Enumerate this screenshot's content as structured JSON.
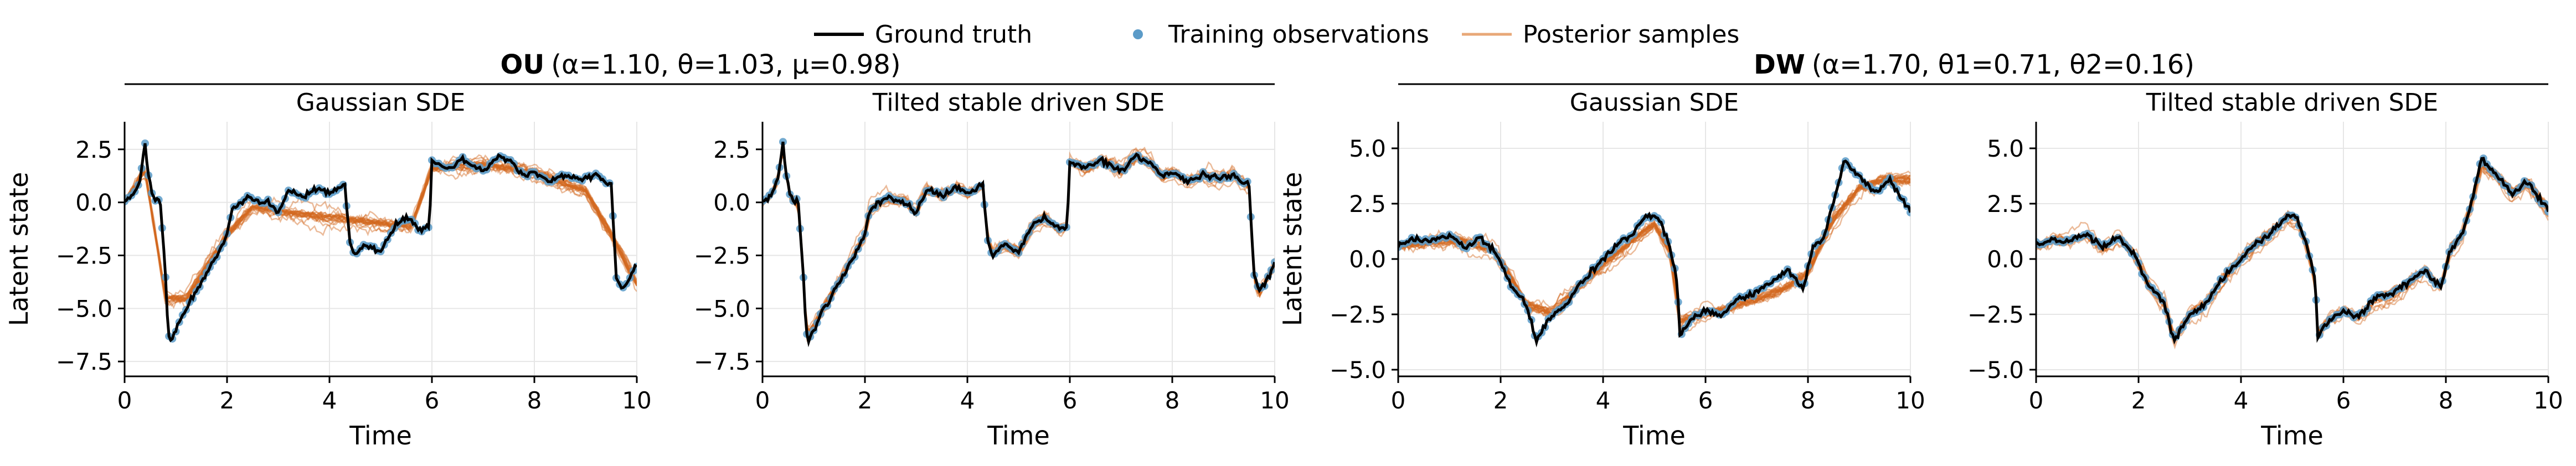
{
  "legend": {
    "placement": "top-center",
    "items": [
      {
        "label": "Ground truth",
        "kind": "line",
        "color": "#000000"
      },
      {
        "label": "Training observations",
        "kind": "marker",
        "color": "#5b9bc8"
      },
      {
        "label": "Posterior samples",
        "kind": "line",
        "color": "#e8a878"
      }
    ]
  },
  "groups": [
    {
      "bold": "OU",
      "params": "(α=1.10, θ=1.03, μ=0.98)"
    },
    {
      "bold": "DW",
      "params": "(α=1.70, θ1=0.71, θ2=0.16)"
    }
  ],
  "colors": {
    "truth": "#000000",
    "obs": "#5b9bc8",
    "samples": "#d2691e",
    "grid": "#e6e6e6"
  },
  "chart_data": [
    {
      "type": "line",
      "title": "Gaussian SDE",
      "group": "OU",
      "xlabel": "Time",
      "ylabel": "Latent state",
      "xlim": [
        0,
        10
      ],
      "ylim": [
        -8.2,
        3.8
      ],
      "xticks": [
        0,
        2,
        4,
        6,
        8,
        10
      ],
      "yticks": [
        -7.5,
        -5.0,
        -2.5,
        0.0,
        2.5
      ],
      "ytick_labels": [
        "−7.5",
        "−5.0",
        "−2.5",
        "0.0",
        "2.5"
      ],
      "grid": true,
      "truth": {
        "x": [
          0,
          0.15,
          0.3,
          0.4,
          0.45,
          0.55,
          0.7,
          0.8,
          0.85,
          0.9,
          1.0,
          1.2,
          1.5,
          1.8,
          2.0,
          2.1,
          2.4,
          2.8,
          3.0,
          3.2,
          3.5,
          3.8,
          4.0,
          4.3,
          4.4,
          4.5,
          4.7,
          5.0,
          5.3,
          5.5,
          5.8,
          5.95,
          6.0,
          6.3,
          6.6,
          7.0,
          7.3,
          7.6,
          7.8,
          8.0,
          8.3,
          8.6,
          8.9,
          9.2,
          9.5,
          9.6,
          9.7,
          9.8,
          10.0
        ],
        "y": [
          0,
          0.3,
          1.0,
          2.8,
          1.5,
          0.2,
          0.0,
          -3.5,
          -6.2,
          -6.5,
          -6.0,
          -5.0,
          -3.8,
          -2.5,
          -1.5,
          -0.3,
          0.2,
          0.0,
          -0.5,
          0.6,
          0.3,
          0.7,
          0.4,
          0.8,
          -1.8,
          -2.5,
          -2.0,
          -2.3,
          -1.0,
          -0.7,
          -1.3,
          -1.1,
          1.9,
          1.6,
          2.0,
          1.5,
          2.2,
          1.8,
          1.2,
          1.4,
          1.0,
          1.3,
          1.1,
          1.3,
          0.8,
          -3.5,
          -4.2,
          -3.8,
          -3.0
        ]
      },
      "samples_center": {
        "x": [
          0,
          0.4,
          0.8,
          1.2,
          2.0,
          2.5,
          3.0,
          4.0,
          5.0,
          5.6,
          6.0,
          7.0,
          8.0,
          9.0,
          9.5,
          10.0
        ],
        "y": [
          0,
          1.5,
          -4.5,
          -4.5,
          -1.5,
          -0.2,
          -0.4,
          -0.7,
          -1.0,
          -1.1,
          1.6,
          1.8,
          1.4,
          0.6,
          -1.5,
          -3.8
        ]
      }
    },
    {
      "type": "line",
      "title": "Tilted stable driven SDE",
      "group": "OU",
      "xlabel": "Time",
      "ylabel": "",
      "xlim": [
        0,
        10
      ],
      "ylim": [
        -8.2,
        3.8
      ],
      "xticks": [
        0,
        2,
        4,
        6,
        8,
        10
      ],
      "yticks": [
        -7.5,
        -5.0,
        -2.5,
        0.0,
        2.5
      ],
      "ytick_labels": [
        "−7.5",
        "−5.0",
        "−2.5",
        "0.0",
        "2.5"
      ],
      "grid": true,
      "truth": {
        "x": [
          0,
          0.15,
          0.3,
          0.4,
          0.45,
          0.55,
          0.7,
          0.8,
          0.85,
          0.9,
          1.0,
          1.2,
          1.5,
          1.8,
          2.0,
          2.1,
          2.4,
          2.8,
          3.0,
          3.2,
          3.5,
          3.8,
          4.0,
          4.3,
          4.4,
          4.5,
          4.7,
          5.0,
          5.3,
          5.5,
          5.8,
          5.95,
          6.0,
          6.3,
          6.6,
          7.0,
          7.3,
          7.6,
          7.8,
          8.0,
          8.3,
          8.6,
          8.9,
          9.2,
          9.5,
          9.6,
          9.7,
          9.8,
          10.0
        ],
        "y": [
          0,
          0.3,
          1.0,
          2.8,
          1.5,
          0.2,
          0.0,
          -3.5,
          -6.2,
          -6.5,
          -6.0,
          -5.0,
          -3.8,
          -2.5,
          -1.5,
          -0.3,
          0.2,
          0.0,
          -0.5,
          0.6,
          0.3,
          0.7,
          0.4,
          0.8,
          -1.8,
          -2.5,
          -2.0,
          -2.3,
          -1.0,
          -0.7,
          -1.3,
          -1.1,
          1.9,
          1.6,
          2.0,
          1.5,
          2.2,
          1.8,
          1.2,
          1.4,
          1.0,
          1.3,
          1.1,
          1.3,
          0.8,
          -3.5,
          -4.2,
          -3.8,
          -3.0
        ]
      },
      "samples_center": {
        "x": [
          0,
          0.15,
          0.3,
          0.4,
          0.45,
          0.55,
          0.7,
          0.8,
          0.85,
          0.9,
          1.0,
          1.2,
          1.5,
          1.8,
          2.0,
          2.1,
          2.4,
          2.8,
          3.0,
          3.2,
          3.5,
          3.8,
          4.0,
          4.3,
          4.4,
          4.5,
          4.7,
          5.0,
          5.3,
          5.5,
          5.8,
          5.95,
          6.0,
          6.3,
          6.6,
          7.0,
          7.3,
          7.6,
          7.8,
          8.0,
          8.3,
          8.6,
          8.9,
          9.2,
          9.5,
          9.6,
          9.7,
          9.8,
          10.0
        ],
        "y": [
          0,
          0.3,
          1.0,
          2.6,
          1.5,
          0.2,
          0.0,
          -3.3,
          -5.8,
          -6.2,
          -5.8,
          -4.9,
          -3.7,
          -2.4,
          -1.5,
          -0.3,
          0.2,
          0.0,
          -0.5,
          0.6,
          0.3,
          0.7,
          0.4,
          0.8,
          -1.7,
          -2.4,
          -2.0,
          -2.3,
          -1.0,
          -0.7,
          -1.3,
          -1.1,
          1.9,
          1.6,
          2.0,
          1.5,
          2.2,
          1.8,
          1.2,
          1.4,
          1.0,
          1.3,
          1.1,
          1.3,
          0.8,
          -3.6,
          -4.3,
          -3.8,
          -3.0
        ]
      }
    },
    {
      "type": "line",
      "title": "Gaussian SDE",
      "group": "DW",
      "xlabel": "Time",
      "ylabel": "Latent state",
      "xlim": [
        0,
        10
      ],
      "ylim": [
        -5.3,
        6.2
      ],
      "xticks": [
        0,
        2,
        4,
        6,
        8,
        10
      ],
      "yticks": [
        -5.0,
        -2.5,
        0.0,
        2.5,
        5.0
      ],
      "ytick_labels": [
        "−5.0",
        "−2.5",
        "0.0",
        "2.5",
        "5.0"
      ],
      "grid": true,
      "truth": {
        "x": [
          0,
          0.3,
          0.6,
          1.0,
          1.3,
          1.6,
          1.9,
          2.2,
          2.5,
          2.7,
          3.0,
          3.3,
          3.6,
          4.0,
          4.3,
          4.6,
          4.9,
          5.1,
          5.3,
          5.45,
          5.5,
          5.7,
          6.0,
          6.3,
          6.6,
          7.0,
          7.3,
          7.6,
          7.9,
          8.1,
          8.3,
          8.5,
          8.7,
          9.0,
          9.3,
          9.6,
          9.8,
          10.0
        ],
        "y": [
          0.6,
          0.9,
          0.8,
          1.1,
          0.5,
          1.0,
          0.3,
          -1.2,
          -2.0,
          -3.7,
          -2.5,
          -2.0,
          -1.0,
          0.0,
          0.7,
          1.2,
          2.0,
          1.8,
          0.5,
          -1.0,
          -3.5,
          -2.8,
          -2.3,
          -2.6,
          -1.8,
          -1.5,
          -1.0,
          -0.5,
          -1.3,
          0.5,
          1.0,
          2.5,
          4.5,
          3.8,
          3.0,
          3.5,
          2.8,
          2.2
        ]
      },
      "samples_center": {
        "x": [
          0,
          0.6,
          1.2,
          1.9,
          2.5,
          3.0,
          4.0,
          5.0,
          5.3,
          5.5,
          5.7,
          6.5,
          7.5,
          8.0,
          8.5,
          9.0,
          9.5,
          10.0
        ],
        "y": [
          0.6,
          0.8,
          0.9,
          0.4,
          -2.0,
          -2.4,
          -0.2,
          1.6,
          0.4,
          -2.8,
          -2.6,
          -2.2,
          -1.4,
          -0.6,
          1.8,
          3.2,
          3.6,
          3.6
        ]
      }
    },
    {
      "type": "line",
      "title": "Tilted stable driven SDE",
      "group": "DW",
      "xlabel": "Time",
      "ylabel": "",
      "xlim": [
        0,
        10
      ],
      "ylim": [
        -5.3,
        6.2
      ],
      "xticks": [
        0,
        2,
        4,
        6,
        8,
        10
      ],
      "yticks": [
        -5.0,
        -2.5,
        0.0,
        2.5,
        5.0
      ],
      "ytick_labels": [
        "−5.0",
        "−2.5",
        "0.0",
        "2.5",
        "5.0"
      ],
      "grid": true,
      "truth": {
        "x": [
          0,
          0.3,
          0.6,
          1.0,
          1.3,
          1.6,
          1.9,
          2.2,
          2.5,
          2.7,
          3.0,
          3.3,
          3.6,
          4.0,
          4.3,
          4.6,
          4.9,
          5.1,
          5.3,
          5.45,
          5.5,
          5.7,
          6.0,
          6.3,
          6.6,
          7.0,
          7.3,
          7.6,
          7.9,
          8.1,
          8.3,
          8.5,
          8.7,
          9.0,
          9.3,
          9.6,
          9.8,
          10.0
        ],
        "y": [
          0.6,
          0.9,
          0.8,
          1.1,
          0.5,
          1.0,
          0.3,
          -1.2,
          -2.0,
          -3.7,
          -2.5,
          -2.0,
          -1.0,
          0.0,
          0.7,
          1.2,
          2.0,
          1.8,
          0.5,
          -1.0,
          -3.5,
          -2.8,
          -2.3,
          -2.6,
          -1.8,
          -1.5,
          -1.0,
          -0.5,
          -1.3,
          0.5,
          1.0,
          2.5,
          4.5,
          3.8,
          3.0,
          3.5,
          2.8,
          2.2
        ]
      },
      "samples_center": {
        "x": [
          0,
          0.3,
          0.6,
          1.0,
          1.3,
          1.6,
          1.9,
          2.2,
          2.5,
          2.7,
          3.0,
          3.3,
          3.6,
          4.0,
          4.3,
          4.6,
          4.9,
          5.1,
          5.3,
          5.45,
          5.5,
          5.7,
          6.0,
          6.3,
          6.6,
          7.0,
          7.3,
          7.6,
          7.9,
          8.1,
          8.3,
          8.5,
          8.7,
          9.0,
          9.3,
          9.6,
          9.8,
          10.0
        ],
        "y": [
          0.6,
          0.9,
          0.8,
          1.1,
          0.5,
          1.0,
          0.3,
          -1.2,
          -2.0,
          -3.6,
          -2.5,
          -2.0,
          -1.0,
          0.0,
          0.7,
          1.2,
          2.0,
          1.8,
          0.5,
          -1.0,
          -3.3,
          -2.8,
          -2.3,
          -2.6,
          -1.8,
          -1.5,
          -1.0,
          -0.5,
          -1.3,
          0.5,
          1.0,
          2.5,
          4.3,
          3.8,
          3.0,
          3.5,
          2.8,
          2.2
        ]
      }
    }
  ]
}
